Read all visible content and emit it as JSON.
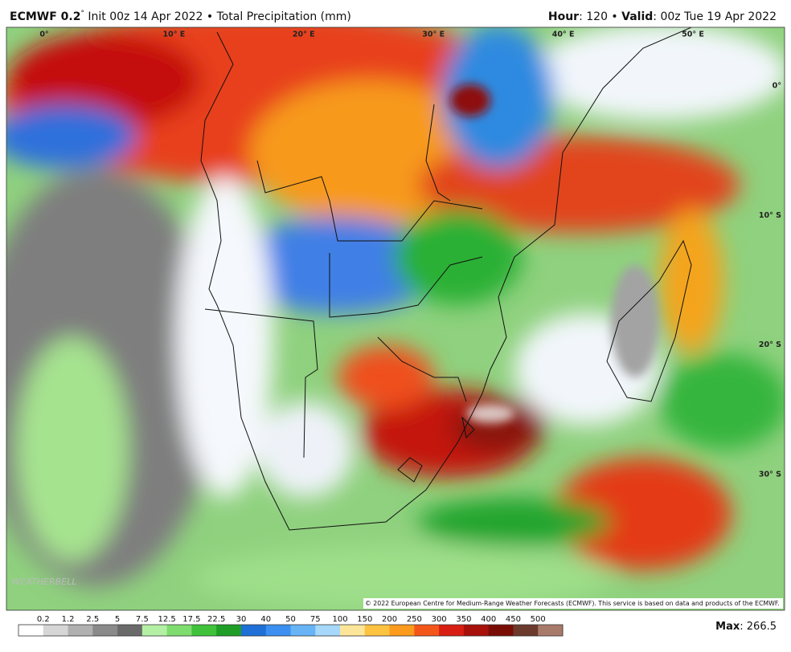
{
  "header": {
    "model": "ECMWF 0.2",
    "degree": "°",
    "run": " Init 00z 14 Apr 2022 • Total Precipitation (mm)",
    "hour_label": "Hour",
    "hour_value": ": 120 • ",
    "valid_label": "Valid",
    "valid_value": ": 00z Tue 19 Apr 2022"
  },
  "map": {
    "longitudes": [
      "0°",
      "10° E",
      "20° E",
      "30° E",
      "40° E",
      "50° E"
    ],
    "latitudes": [
      "0°",
      "10° S",
      "20° S",
      "30° S"
    ],
    "watermark": "WEATHERBELL",
    "copyright": "© 2022 European Centre for Medium-Range Weather Forecasts (ECMWF). This service is based on data and products of the ECMWF."
  },
  "colorbar": {
    "labels": [
      "0.2",
      "1.2",
      "2.5",
      "5",
      "7.5",
      "12.5",
      "17.5",
      "22.5",
      "30",
      "40",
      "50",
      "75",
      "100",
      "150",
      "200",
      "250",
      "300",
      "350",
      "400",
      "450",
      "500"
    ]
  },
  "max": {
    "label": "Max",
    "value": ": 266.5"
  }
}
